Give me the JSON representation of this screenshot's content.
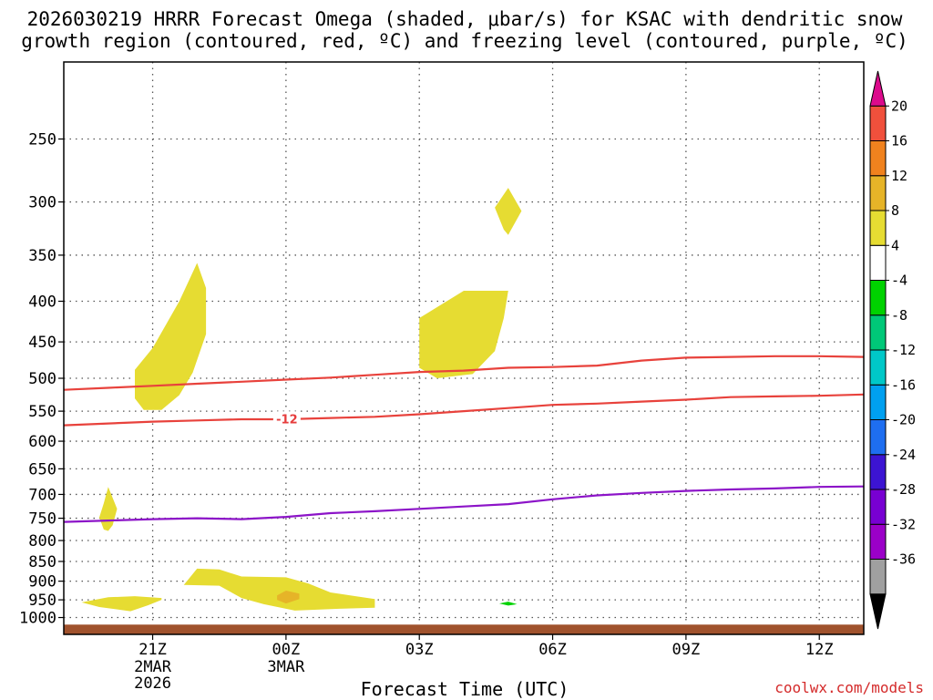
{
  "chart_data": {
    "type": "time-height",
    "title_line1": "2026030219 HRRR Forecast Omega (shaded, μbar/s) for KSAC with dendritic snow",
    "title_line2": "growth region (contoured, red, ºC) and freezing level (contoured, purple, ºC)",
    "xlabel": "Forecast Time (UTC)",
    "credit": "coolwx.com/models",
    "x_range_hours": [
      19,
      37
    ],
    "x_ticks": [
      {
        "hour": 21,
        "label": "21Z",
        "sub1": "2MAR",
        "sub2": "2026"
      },
      {
        "hour": 24,
        "label": "00Z",
        "sub1": "3MAR",
        "sub2": ""
      },
      {
        "hour": 27,
        "label": "03Z",
        "sub1": "",
        "sub2": ""
      },
      {
        "hour": 30,
        "label": "06Z",
        "sub1": "",
        "sub2": ""
      },
      {
        "hour": 33,
        "label": "09Z",
        "sub1": "",
        "sub2": ""
      },
      {
        "hour": 36,
        "label": "12Z",
        "sub1": "",
        "sub2": ""
      }
    ],
    "y_range_hpa": [
      1050,
      200
    ],
    "y_scale": "log-pressure",
    "y_ticks": [
      250,
      300,
      350,
      400,
      450,
      500,
      550,
      600,
      650,
      700,
      750,
      800,
      850,
      900,
      950,
      1000
    ],
    "grid": true,
    "surface_color": "#a0522d",
    "colorbar": {
      "colors": [
        "#000000",
        "#a0a0a0",
        "#9b00c8",
        "#7800d2",
        "#3c14d2",
        "#1e6ef0",
        "#00a0f0",
        "#00c8c8",
        "#00c878",
        "#00d200",
        "#ffffff",
        "#e6dc32",
        "#e6b428",
        "#f0821e",
        "#f0503c",
        "#dc0a8c"
      ],
      "labels": [
        "20",
        "16",
        "12",
        "8",
        "4",
        "-4",
        "-8",
        "-12",
        "-16",
        "-20",
        "-24",
        "-28",
        "-32",
        "-36"
      ]
    },
    "dgz_contours": [
      {
        "temp_c": -12,
        "label": "-12",
        "points": [
          [
            19,
            573
          ],
          [
            20,
            570
          ],
          [
            21,
            567
          ],
          [
            22,
            565
          ],
          [
            23,
            563
          ],
          [
            24,
            563
          ],
          [
            25,
            561
          ],
          [
            26,
            559
          ],
          [
            27,
            555
          ],
          [
            28,
            550
          ],
          [
            29,
            545
          ],
          [
            30,
            540
          ],
          [
            31,
            538
          ],
          [
            32,
            535
          ],
          [
            33,
            532
          ],
          [
            34,
            528
          ],
          [
            35,
            527
          ],
          [
            36,
            526
          ],
          [
            37,
            524
          ]
        ]
      },
      {
        "temp_c": -18,
        "label": "",
        "points": [
          [
            19,
            517
          ],
          [
            20,
            514
          ],
          [
            21,
            511
          ],
          [
            22,
            508
          ],
          [
            23,
            505
          ],
          [
            24,
            502
          ],
          [
            25,
            499
          ],
          [
            26,
            495
          ],
          [
            27,
            491
          ],
          [
            28,
            489
          ],
          [
            29,
            485
          ],
          [
            30,
            484
          ],
          [
            31,
            482
          ],
          [
            32,
            475
          ],
          [
            33,
            471
          ],
          [
            34,
            470
          ],
          [
            35,
            469
          ],
          [
            36,
            469
          ],
          [
            37,
            470
          ]
        ]
      }
    ],
    "freezing_level": {
      "temp_c": 0,
      "points": [
        [
          19,
          758
        ],
        [
          20,
          755
        ],
        [
          21,
          752
        ],
        [
          22,
          750
        ],
        [
          23,
          752
        ],
        [
          24,
          747
        ],
        [
          25,
          739
        ],
        [
          26,
          735
        ],
        [
          27,
          730
        ],
        [
          28,
          725
        ],
        [
          29,
          720
        ],
        [
          30,
          710
        ],
        [
          31,
          702
        ],
        [
          32,
          697
        ],
        [
          33,
          693
        ],
        [
          34,
          690
        ],
        [
          35,
          688
        ],
        [
          36,
          685
        ],
        [
          37,
          684
        ]
      ]
    },
    "omega_regions": [
      {
        "value_range": "4-8",
        "color": "#e6dc32",
        "points": [
          [
            20.6,
            488
          ],
          [
            21.0,
            458
          ],
          [
            21.6,
            400
          ],
          [
            22.0,
            358
          ],
          [
            22.2,
            385
          ],
          [
            22.2,
            440
          ],
          [
            21.9,
            492
          ],
          [
            21.6,
            525
          ],
          [
            21.2,
            548
          ],
          [
            20.8,
            548
          ],
          [
            20.6,
            530
          ]
        ]
      },
      {
        "value_range": "4-8",
        "color": "#e6dc32",
        "points": [
          [
            27.0,
            420
          ],
          [
            28.0,
            388
          ],
          [
            29.0,
            388
          ],
          [
            28.9,
            420
          ],
          [
            28.7,
            462
          ],
          [
            28.2,
            494
          ],
          [
            27.4,
            500
          ],
          [
            27.0,
            485
          ]
        ]
      },
      {
        "value_range": "4-8",
        "color": "#e6dc32",
        "points": [
          [
            28.7,
            305
          ],
          [
            29.0,
            288
          ],
          [
            29.3,
            308
          ],
          [
            29.0,
            330
          ],
          [
            28.9,
            325
          ]
        ]
      },
      {
        "value_range": "4-8",
        "color": "#e6dc32",
        "points": [
          [
            19.8,
            748
          ],
          [
            19.9,
            718
          ],
          [
            20.0,
            685
          ],
          [
            20.2,
            730
          ],
          [
            20.1,
            765
          ],
          [
            20.0,
            778
          ],
          [
            19.9,
            775
          ]
        ]
      },
      {
        "value_range": "4-8",
        "color": "#e6dc32",
        "points": [
          [
            19.4,
            957
          ],
          [
            20.0,
            943
          ],
          [
            20.6,
            940
          ],
          [
            21.2,
            945
          ],
          [
            21.2,
            950
          ],
          [
            20.9,
            965
          ],
          [
            20.5,
            982
          ],
          [
            19.8,
            970
          ]
        ]
      },
      {
        "value_range": "4-8",
        "color": "#e6dc32",
        "points": [
          [
            21.7,
            910
          ],
          [
            22.0,
            868
          ],
          [
            22.5,
            870
          ],
          [
            23.0,
            888
          ],
          [
            24.0,
            890
          ],
          [
            24.5,
            906
          ],
          [
            25.0,
            930
          ],
          [
            26.0,
            948
          ],
          [
            26.0,
            972
          ],
          [
            25.2,
            975
          ],
          [
            24.2,
            980
          ],
          [
            23.5,
            962
          ],
          [
            23.0,
            945
          ],
          [
            22.5,
            912
          ]
        ]
      },
      {
        "value_range": "8-12",
        "color": "#e6b428",
        "points": [
          [
            23.8,
            938
          ],
          [
            24.0,
            925
          ],
          [
            24.3,
            933
          ],
          [
            24.3,
            948
          ],
          [
            24.0,
            960
          ],
          [
            23.8,
            950
          ]
        ]
      },
      {
        "value_range": "-4 to -8",
        "color": "#00d200",
        "points": [
          [
            28.8,
            960
          ],
          [
            29.0,
            955
          ],
          [
            29.2,
            962
          ],
          [
            29.0,
            966
          ]
        ]
      }
    ],
    "surface": {
      "segments": [
        [
          19,
          1037
        ],
        [
          37,
          1037
        ]
      ],
      "bump": [
        [
          33.4,
          1036
        ],
        [
          34.8,
          1030
        ],
        [
          36.0,
          1036
        ]
      ]
    }
  }
}
